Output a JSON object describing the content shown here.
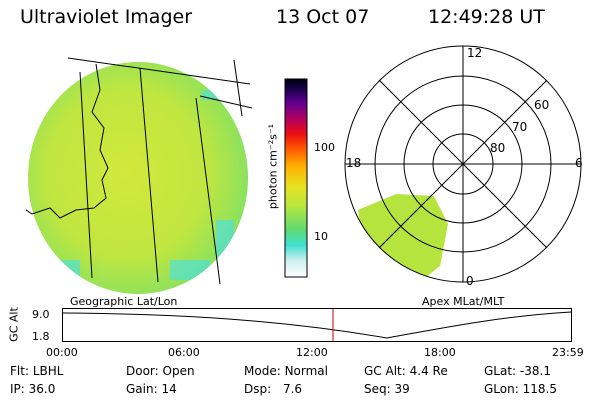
{
  "header": {
    "instrument": "Ultraviolet Imager",
    "date": "13 Oct 07",
    "time": "12:49:28 UT"
  },
  "left_panel": {
    "caption": "Geographic Lat/Lon"
  },
  "right_panel": {
    "caption": "Apex MLat/MLT",
    "mlt_labels": {
      "top": "12",
      "left": "18",
      "right": "6",
      "bottom": "0"
    },
    "lat_labels": [
      "60",
      "70",
      "80"
    ]
  },
  "colorbar": {
    "unit_label": "photon cm⁻²s⁻¹",
    "tick_labels": [
      "100",
      "10"
    ]
  },
  "altitude_plot": {
    "y_axis_label": "GC Alt",
    "y_tick_labels": [
      "9.0",
      "1.8"
    ],
    "x_tick_labels": [
      "00:00",
      "06:00",
      "12:00",
      "18:00",
      "23:59"
    ],
    "current_marker_time": "12:49",
    "colors": {
      "marker": "#cc0000",
      "curve": "#000000"
    }
  },
  "info": {
    "row1": [
      {
        "label": "Flt:",
        "value": "LBHL"
      },
      {
        "label": "Door:",
        "value": "Open"
      },
      {
        "label": "Mode:",
        "value": "Normal"
      },
      {
        "label": "GC Alt:",
        "value": "4.4 Re"
      },
      {
        "label": "GLat:",
        "value": "-38.1"
      }
    ],
    "row2": [
      {
        "label": "IP:",
        "value": "36.0"
      },
      {
        "label": "Gain:",
        "value": "14"
      },
      {
        "label": "Dsp:",
        "value": "7.6"
      },
      {
        "label": "Seq:",
        "value": "39"
      },
      {
        "label": "GLon:",
        "value": "118.5"
      }
    ]
  },
  "palette": {
    "image_base": "#c8e63c",
    "image_edge": "#6ee07a",
    "image_cyan": "#50e0d8"
  }
}
